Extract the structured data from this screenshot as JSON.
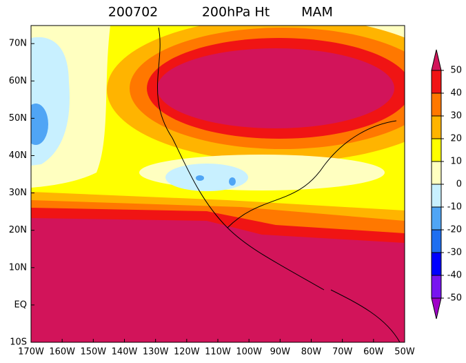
{
  "header": {
    "date": "200702",
    "field": "200hPa Ht",
    "season": "MAM"
  },
  "axes": {
    "lat_labels": [
      "10S",
      "EQ",
      "10N",
      "20N",
      "30N",
      "40N",
      "50N",
      "60N",
      "70N"
    ],
    "lon_labels": [
      "170W",
      "160W",
      "150W",
      "140W",
      "130W",
      "120W",
      "110W",
      "100W",
      "90W",
      "80W",
      "70W",
      "60W",
      "50W"
    ]
  },
  "colorbar": {
    "levels": [
      -50,
      -40,
      -30,
      -20,
      -10,
      0,
      10,
      20,
      30,
      40,
      50
    ],
    "colors": [
      "#a000c8",
      "#7814f0",
      "#0000ff",
      "#1e6ef0",
      "#50a5f5",
      "#c8f0ff",
      "#ffffc0",
      "#ffff00",
      "#ffb400",
      "#ff7800",
      "#f01414",
      "#d2145a"
    ]
  }
}
